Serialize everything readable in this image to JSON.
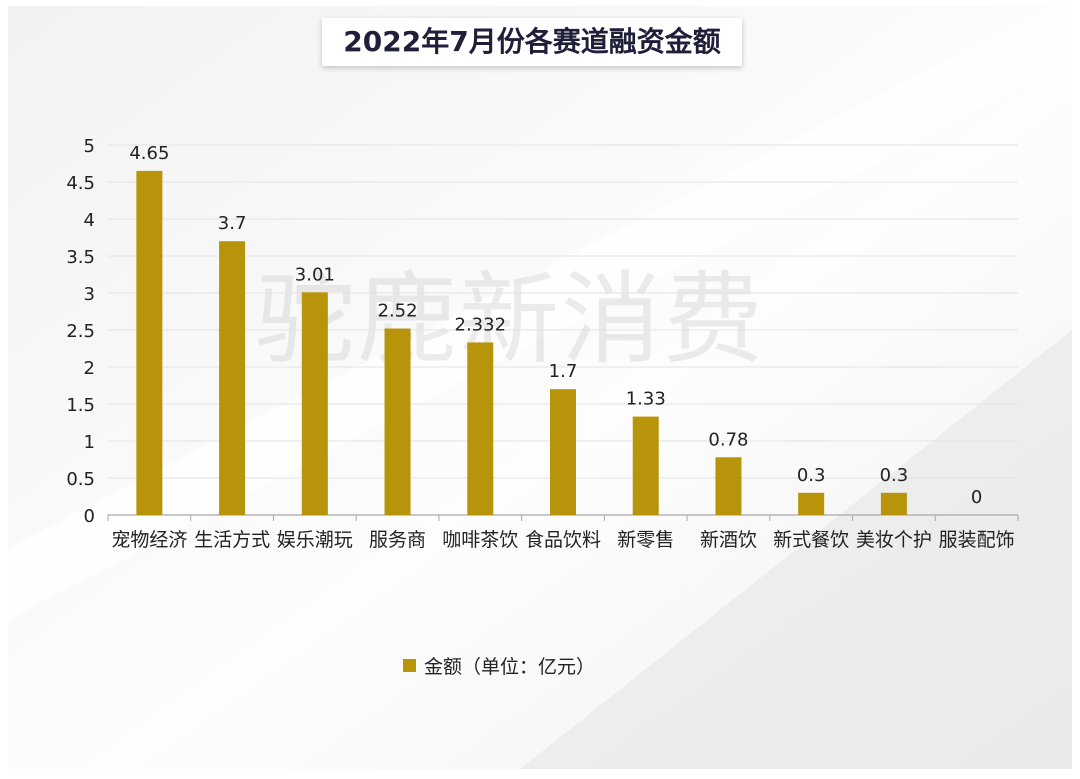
{
  "title": "2022年7月份各赛道融资金额",
  "watermark": "驼鹿新消费",
  "colors": {
    "bar": "#b8940a",
    "grid": "#e3e3e3",
    "axis": "#a8a8a8",
    "text": "#222222"
  },
  "chart_data": {
    "type": "bar",
    "title": "2022年7月份各赛道融资金额",
    "categories": [
      "宠物经济",
      "生活方式",
      "娱乐潮玩",
      "服务商",
      "咖啡茶饮",
      "食品饮料",
      "新零售",
      "新酒饮",
      "新式餐饮",
      "美妆个护",
      "服装配饰"
    ],
    "series": [
      {
        "name": "金额（单位：亿元）",
        "values": [
          4.65,
          3.7,
          3.01,
          2.52,
          2.332,
          1.7,
          1.33,
          0.78,
          0.3,
          0.3,
          0
        ]
      }
    ],
    "data_labels": [
      "4.65",
      "3.7",
      "3.01",
      "2.52",
      "2.332",
      "1.7",
      "1.33",
      "0.78",
      "0.3",
      "0.3",
      "0"
    ],
    "yticks": [
      "0",
      "0.5",
      "1",
      "1.5",
      "2",
      "2.5",
      "3",
      "3.5",
      "4",
      "4.5",
      "5"
    ],
    "ylim": [
      0,
      5
    ],
    "grid": true,
    "legend_position": "bottom"
  }
}
